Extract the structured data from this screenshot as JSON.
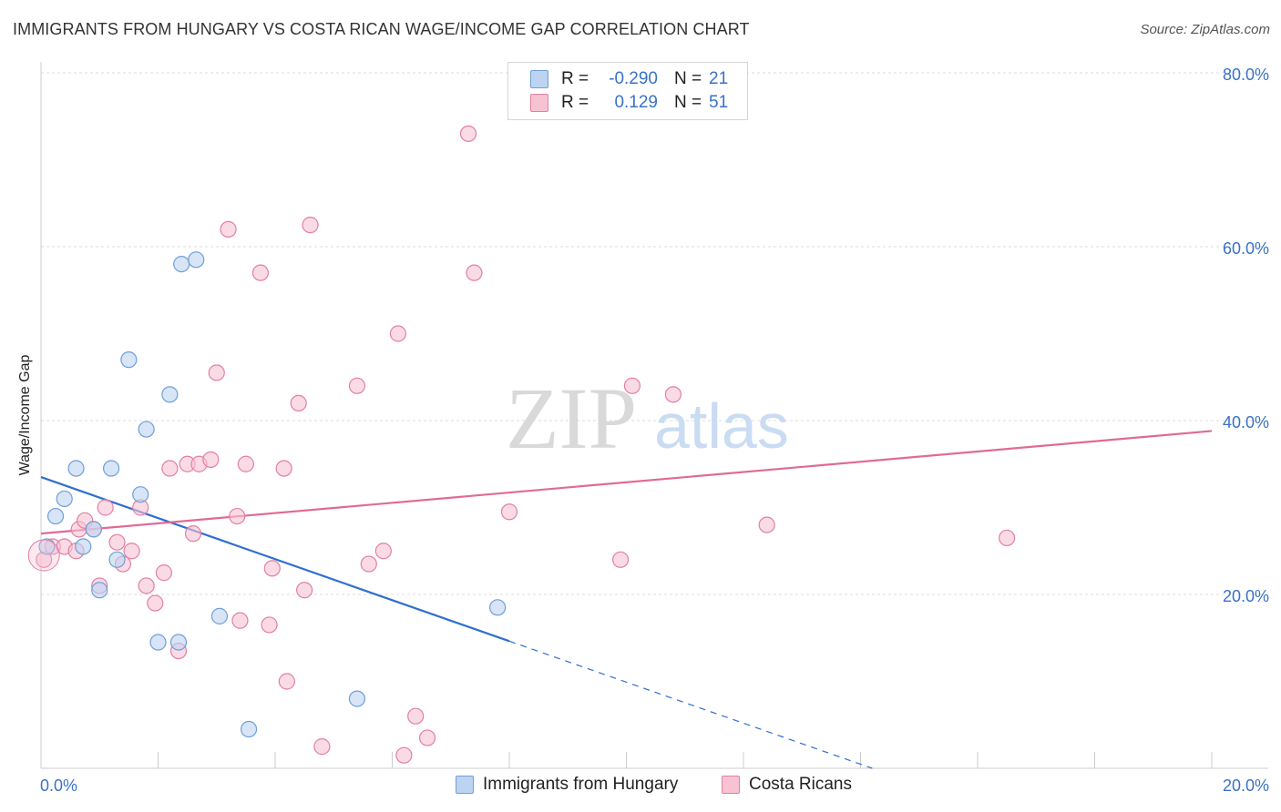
{
  "chart_data": {
    "type": "scatter",
    "title": "IMMIGRANTS FROM HUNGARY VS COSTA RICAN WAGE/INCOME GAP CORRELATION CHART",
    "source": "Source: ZipAtlas.com",
    "xlabel": "",
    "ylabel": "Wage/Income Gap",
    "xlim": [
      0,
      20
    ],
    "ylim": [
      0,
      80
    ],
    "x_tick_labels": [
      "0.0%",
      "20.0%"
    ],
    "y_tick_values": [
      20,
      40,
      60,
      80
    ],
    "y_tick_labels": [
      "20.0%",
      "40.0%",
      "60.0%",
      "80.0%"
    ],
    "watermark": {
      "zip": "ZIP",
      "atlas": "atlas"
    },
    "series": [
      {
        "name": "Immigrants from Hungary",
        "color": "#6f9fd8",
        "fill": "#bcd4f2",
        "R_label": "R =",
        "R": "-0.290",
        "N_label": "N =",
        "N": "21",
        "points": [
          [
            0.1,
            25.5
          ],
          [
            0.25,
            29.0
          ],
          [
            0.4,
            31.0
          ],
          [
            0.6,
            34.5
          ],
          [
            0.72,
            25.5
          ],
          [
            0.9,
            27.5
          ],
          [
            1.0,
            20.5
          ],
          [
            1.2,
            34.5
          ],
          [
            1.3,
            24.0
          ],
          [
            1.5,
            47.0
          ],
          [
            1.7,
            31.5
          ],
          [
            1.8,
            39.0
          ],
          [
            2.0,
            14.5
          ],
          [
            2.2,
            43.0
          ],
          [
            2.35,
            14.5
          ],
          [
            2.4,
            58.0
          ],
          [
            2.65,
            58.5
          ],
          [
            3.05,
            17.5
          ],
          [
            3.55,
            4.5
          ],
          [
            5.4,
            8.0
          ],
          [
            7.8,
            18.5
          ]
        ],
        "trend": {
          "x0": 0,
          "y0": 33.5,
          "x_solid_end": 8.0,
          "x1": 14.2,
          "y1": 0
        }
      },
      {
        "name": "Costa Ricans",
        "color": "#e27fa3",
        "fill": "#f7c3d3",
        "R_label": "R =",
        "R": "0.129",
        "N_label": "N =",
        "N": "51",
        "points": [
          [
            0.05,
            24.0
          ],
          [
            0.2,
            25.5
          ],
          [
            0.4,
            25.5
          ],
          [
            0.6,
            25.0
          ],
          [
            0.65,
            27.5
          ],
          [
            0.75,
            28.5
          ],
          [
            0.9,
            27.5
          ],
          [
            1.0,
            21.0
          ],
          [
            1.1,
            30.0
          ],
          [
            1.3,
            26.0
          ],
          [
            1.4,
            23.5
          ],
          [
            1.55,
            25.0
          ],
          [
            1.7,
            30.0
          ],
          [
            1.8,
            21.0
          ],
          [
            1.95,
            19.0
          ],
          [
            2.1,
            22.5
          ],
          [
            2.2,
            34.5
          ],
          [
            2.35,
            13.5
          ],
          [
            2.5,
            35.0
          ],
          [
            2.7,
            35.0
          ],
          [
            2.9,
            35.5
          ],
          [
            2.6,
            27.0
          ],
          [
            3.0,
            45.5
          ],
          [
            3.2,
            62.0
          ],
          [
            3.35,
            29.0
          ],
          [
            3.4,
            17.0
          ],
          [
            3.5,
            35.0
          ],
          [
            3.75,
            57.0
          ],
          [
            3.9,
            16.5
          ],
          [
            3.95,
            23.0
          ],
          [
            4.15,
            34.5
          ],
          [
            4.2,
            10.0
          ],
          [
            4.4,
            42.0
          ],
          [
            4.5,
            20.5
          ],
          [
            4.6,
            62.5
          ],
          [
            4.8,
            2.5
          ],
          [
            5.4,
            44.0
          ],
          [
            5.6,
            23.5
          ],
          [
            5.85,
            25.0
          ],
          [
            6.1,
            50.0
          ],
          [
            6.2,
            1.5
          ],
          [
            6.4,
            6.0
          ],
          [
            6.6,
            3.5
          ],
          [
            7.3,
            73.0
          ],
          [
            7.4,
            57.0
          ],
          [
            8.0,
            29.5
          ],
          [
            9.9,
            24.0
          ],
          [
            10.1,
            44.0
          ],
          [
            10.8,
            43.0
          ],
          [
            12.4,
            28.0
          ],
          [
            16.5,
            26.5
          ]
        ],
        "trend": {
          "x0": 0,
          "y0": 27.0,
          "x1": 20.0,
          "y1": 38.8
        }
      }
    ]
  }
}
